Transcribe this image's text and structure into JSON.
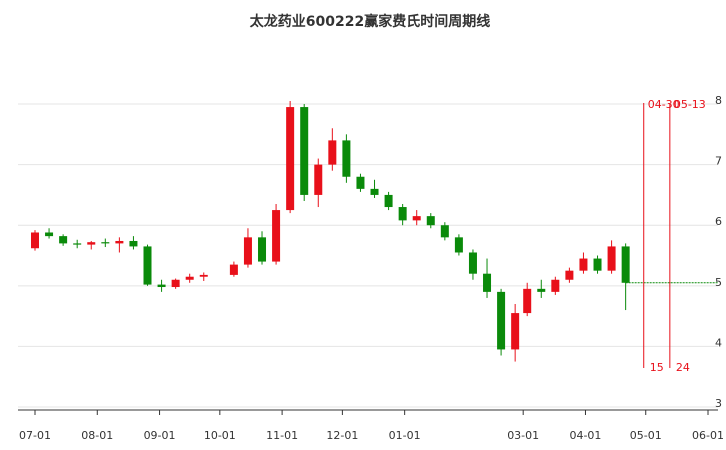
{
  "chart_data": {
    "type": "candlestick",
    "title": "太龙药业600222赢家费氏时间周期线",
    "x": [
      "07-01",
      "07-08",
      "07-15",
      "07-22",
      "07-29",
      "08-05",
      "08-12",
      "08-19",
      "08-26",
      "09-02",
      "09-09",
      "09-16",
      "09-23",
      "10-08",
      "10-15",
      "10-22",
      "10-29",
      "11-05",
      "11-12",
      "11-19",
      "11-26",
      "12-03",
      "12-10",
      "12-17",
      "12-24",
      "12-31",
      "01-07",
      "01-14",
      "01-21",
      "01-28",
      "02-04",
      "02-11",
      "02-18",
      "02-25",
      "03-03",
      "03-10",
      "03-17",
      "03-24",
      "03-31",
      "04-07",
      "04-14",
      "04-21"
    ],
    "open": [
      5.62,
      5.88,
      5.82,
      5.7,
      5.68,
      5.72,
      5.7,
      5.74,
      5.65,
      5.02,
      4.98,
      5.1,
      5.15,
      5.18,
      5.35,
      5.8,
      5.4,
      6.25,
      7.95,
      6.5,
      7.0,
      7.4,
      6.8,
      6.6,
      6.5,
      6.3,
      6.08,
      6.15,
      6.0,
      5.8,
      5.55,
      5.2,
      4.9,
      3.95,
      4.55,
      4.95,
      4.9,
      5.1,
      5.25,
      5.45,
      5.25,
      5.65
    ],
    "high": [
      5.92,
      5.95,
      5.85,
      5.76,
      5.74,
      5.78,
      5.8,
      5.82,
      5.68,
      5.1,
      5.12,
      5.2,
      5.22,
      5.4,
      5.95,
      5.9,
      6.35,
      8.05,
      8.0,
      7.1,
      7.6,
      7.5,
      6.85,
      6.75,
      6.55,
      6.35,
      6.25,
      6.2,
      6.05,
      5.85,
      5.6,
      5.45,
      4.95,
      4.7,
      5.05,
      5.1,
      5.15,
      5.3,
      5.55,
      5.5,
      5.75,
      5.7
    ],
    "low": [
      5.58,
      5.78,
      5.66,
      5.62,
      5.6,
      5.64,
      5.55,
      5.6,
      5.0,
      4.9,
      4.95,
      5.05,
      5.08,
      5.15,
      5.3,
      5.35,
      5.35,
      6.2,
      6.4,
      6.3,
      6.9,
      6.7,
      6.55,
      6.45,
      6.25,
      6.0,
      6.0,
      5.95,
      5.75,
      5.5,
      5.1,
      4.8,
      3.85,
      3.75,
      4.5,
      4.8,
      4.85,
      5.05,
      5.2,
      5.2,
      5.2,
      4.6
    ],
    "close": [
      5.88,
      5.82,
      5.7,
      5.68,
      5.72,
      5.7,
      5.74,
      5.65,
      5.02,
      4.98,
      5.1,
      5.15,
      5.18,
      5.35,
      5.8,
      5.4,
      6.25,
      7.95,
      6.5,
      7.0,
      7.4,
      6.8,
      6.6,
      6.5,
      6.3,
      6.08,
      6.15,
      6.0,
      5.8,
      5.55,
      5.2,
      4.9,
      3.95,
      4.55,
      4.95,
      4.9,
      5.1,
      5.25,
      5.45,
      5.25,
      5.65,
      5.05
    ],
    "up_color": "#e8101a",
    "down_color": "#0a8a0a",
    "ylim": [
      3,
      8.9
    ],
    "yticks": [
      3,
      4,
      5,
      6,
      7,
      8
    ],
    "grid": true,
    "xticks": [
      "07-01",
      "08-01",
      "09-01",
      "10-01",
      "11-01",
      "12-01",
      "01-01",
      "03-01",
      "04-01",
      "05-01",
      "06-01"
    ],
    "cycle_lines": [
      {
        "date": "04-30",
        "count": 15
      },
      {
        "date": "05-13",
        "count": 24
      }
    ],
    "cycle_color": "#e8101a"
  }
}
